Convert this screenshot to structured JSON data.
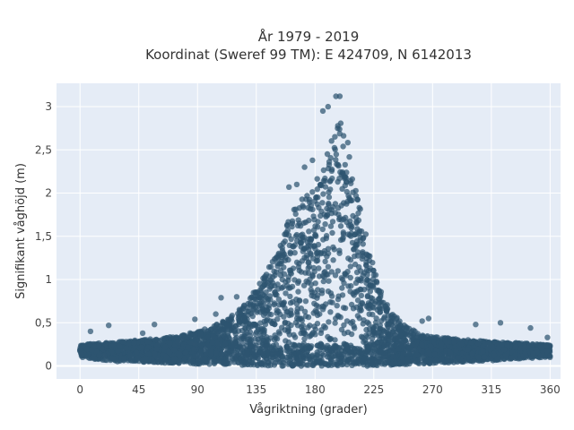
{
  "chart_data": {
    "type": "scatter",
    "title_line1": "År 1979 - 2019",
    "title_line2": "Koordinat (Sweref 99 TM): E 424709, N 6142013",
    "xlabel": "Vågriktning (grader)",
    "ylabel": "Signifikant våghöjd (m)",
    "xlim": [
      -18,
      368
    ],
    "ylim": [
      -0.15,
      3.27
    ],
    "xticks": [
      0,
      45,
      90,
      135,
      180,
      225,
      270,
      315,
      360
    ],
    "xtick_labels": [
      "0",
      "45",
      "90",
      "135",
      "180",
      "225",
      "270",
      "315",
      "360"
    ],
    "yticks": [
      0,
      0.5,
      1,
      1.5,
      2,
      2.5,
      3
    ],
    "ytick_labels": [
      "0",
      "0,5",
      "1",
      "1,5",
      "2",
      "2,5",
      "3"
    ],
    "grid": true,
    "point_color": "#2e5570",
    "plot_background": "#e5ecf6",
    "envelope": {
      "x": [
        0,
        10,
        20,
        30,
        45,
        60,
        75,
        90,
        100,
        110,
        120,
        130,
        140,
        150,
        155,
        160,
        165,
        170,
        175,
        180,
        185,
        190,
        195,
        200,
        205,
        210,
        215,
        220,
        225,
        230,
        240,
        250,
        260,
        270,
        285,
        300,
        315,
        330,
        345,
        360
      ],
      "upper": [
        0.24,
        0.26,
        0.27,
        0.28,
        0.3,
        0.32,
        0.35,
        0.4,
        0.45,
        0.52,
        0.62,
        0.78,
        1.02,
        1.3,
        1.5,
        1.7,
        1.85,
        1.95,
        2.0,
        2.1,
        2.3,
        2.5,
        2.75,
        2.85,
        2.6,
        2.2,
        1.8,
        1.45,
        1.15,
        0.9,
        0.6,
        0.45,
        0.38,
        0.34,
        0.32,
        0.3,
        0.28,
        0.27,
        0.26,
        0.24
      ],
      "lower": [
        0.1,
        0.08,
        0.06,
        0.05,
        0.04,
        0.03,
        0.03,
        0.02,
        0.02,
        0.02,
        0.01,
        0.01,
        0.0,
        0.0,
        0.0,
        0.0,
        0.0,
        0.0,
        0.0,
        0.0,
        0.0,
        0.0,
        0.0,
        0.0,
        0.0,
        0.0,
        0.0,
        0.0,
        0.0,
        0.01,
        0.01,
        0.02,
        0.02,
        0.03,
        0.04,
        0.05,
        0.06,
        0.08,
        0.09,
        0.1
      ]
    },
    "outliers": [
      {
        "x": 8,
        "y": 0.4
      },
      {
        "x": 22,
        "y": 0.47
      },
      {
        "x": 48,
        "y": 0.38
      },
      {
        "x": 57,
        "y": 0.48
      },
      {
        "x": 88,
        "y": 0.54
      },
      {
        "x": 104,
        "y": 0.6
      },
      {
        "x": 108,
        "y": 0.79
      },
      {
        "x": 120,
        "y": 0.8
      },
      {
        "x": 262,
        "y": 0.52
      },
      {
        "x": 267,
        "y": 0.55
      },
      {
        "x": 303,
        "y": 0.48
      },
      {
        "x": 322,
        "y": 0.5
      },
      {
        "x": 345,
        "y": 0.44
      },
      {
        "x": 358,
        "y": 0.33
      },
      {
        "x": 196,
        "y": 3.12
      },
      {
        "x": 199,
        "y": 3.12
      },
      {
        "x": 190,
        "y": 3.0
      },
      {
        "x": 186,
        "y": 2.95
      },
      {
        "x": 160,
        "y": 2.07
      },
      {
        "x": 166,
        "y": 2.1
      },
      {
        "x": 172,
        "y": 2.3
      },
      {
        "x": 178,
        "y": 2.38
      }
    ]
  }
}
